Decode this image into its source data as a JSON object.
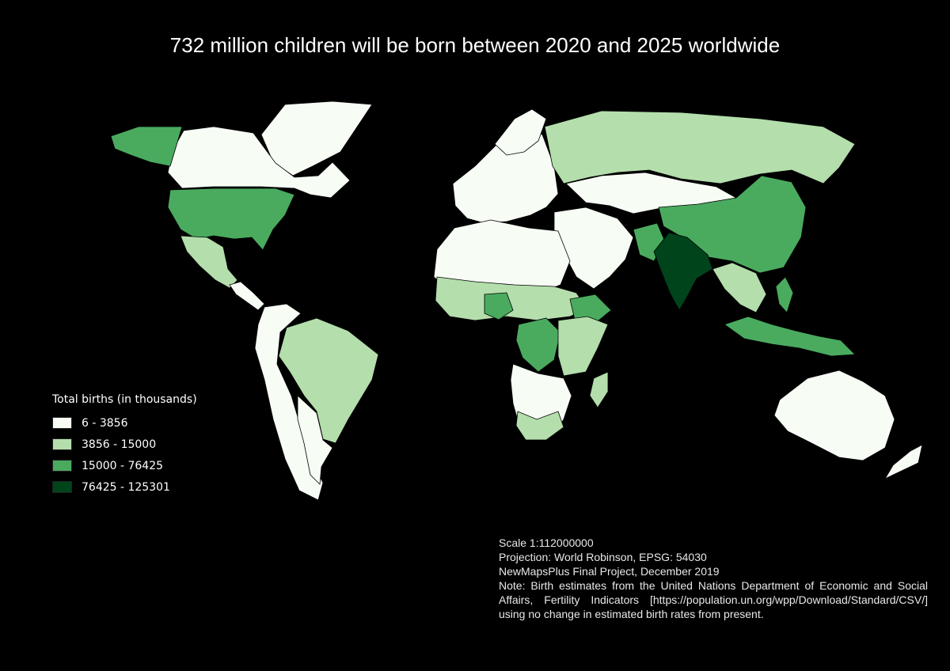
{
  "title": "732 million children will be born between 2020 and 2025 worldwide",
  "legend": {
    "title": "Total births (in thousands)",
    "classes": [
      {
        "label": "6 - 3856",
        "color": "#f7fcf5"
      },
      {
        "label": "3856 - 15000",
        "color": "#b4deac"
      },
      {
        "label": "15000 - 76425",
        "color": "#4aab5f"
      },
      {
        "label": "76425 - 125301",
        "color": "#00441b"
      }
    ]
  },
  "notes": {
    "scale": "Scale 1:112000000",
    "projection": "Projection: World Robinson, EPSG: 54030",
    "project": "NewMapsPlus Final Project, December 2019",
    "note": "Note: Birth estimates from the United Nations Department of Economic and Social Affairs, Fertility Indicators [https://population.un.org/wpp/Download/Standard/CSV/] using no change in estimated birth rates from present."
  },
  "colors": {
    "background": "#000000",
    "border": "#000000"
  }
}
